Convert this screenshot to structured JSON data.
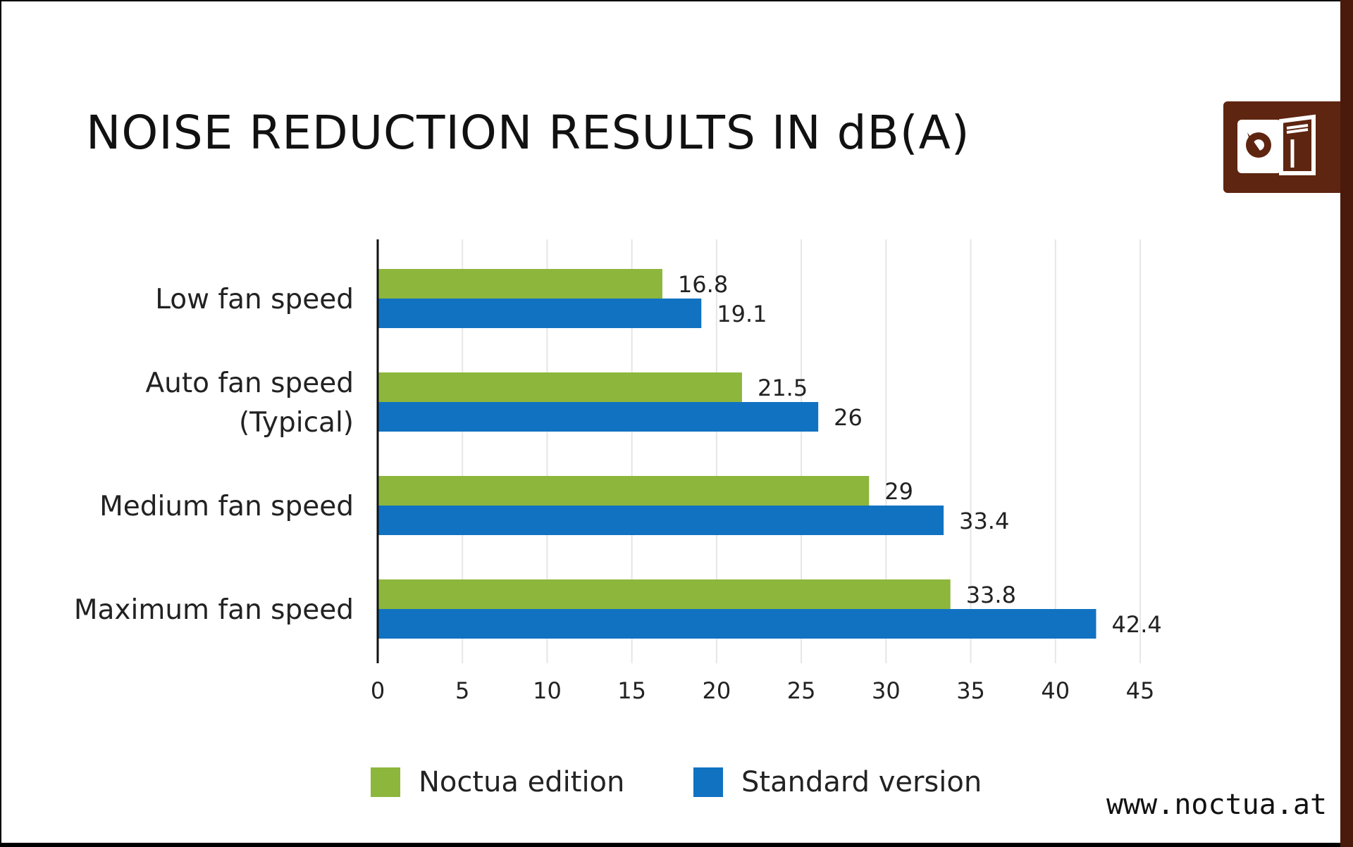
{
  "title": "NOISE REDUCTION RESULTS IN dB(A)",
  "website": "www.noctua.at",
  "logo": {
    "icon": "noctua-owl-logo",
    "color": "#5e2510"
  },
  "colors": {
    "noctua": "#8db63c",
    "standard": "#1172c2",
    "axis": "#111111",
    "grid": "#e6e6e6"
  },
  "chart_data": {
    "type": "bar",
    "orientation": "horizontal",
    "categories": [
      [
        "Low fan speed"
      ],
      [
        "Auto fan speed",
        "(Typical)"
      ],
      [
        "Medium fan speed"
      ],
      [
        "Maximum fan speed"
      ]
    ],
    "series": [
      {
        "name": "Noctua edition",
        "color": "#8db63c",
        "values": [
          16.8,
          21.5,
          29,
          33.8
        ]
      },
      {
        "name": "Standard version",
        "color": "#1172c2",
        "values": [
          19.1,
          26,
          33.4,
          42.4
        ]
      }
    ],
    "xlim": [
      0,
      45
    ],
    "xticks": [
      0,
      5,
      10,
      15,
      20,
      25,
      30,
      35,
      40,
      45
    ],
    "grid": true,
    "legend": "bottom"
  }
}
